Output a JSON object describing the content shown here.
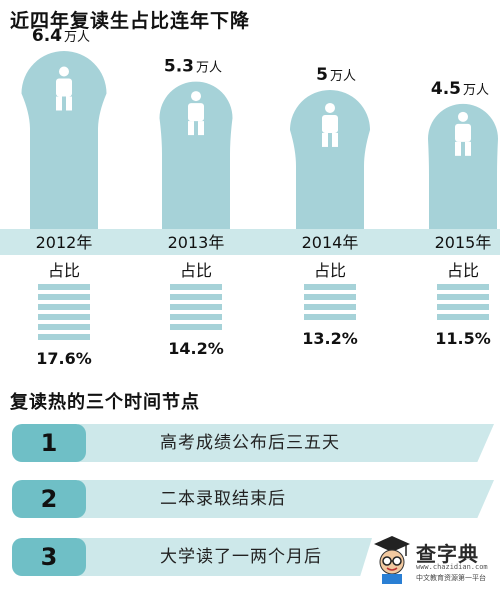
{
  "title": "近四年复读生占比连年下降",
  "unit": "万人",
  "share_label": "占比",
  "colors": {
    "accent": "#a6d2d8",
    "band": "#cde8ea",
    "dark_accent": "#6fbfc6",
    "text": "#111111"
  },
  "chart_data": {
    "type": "bar",
    "title": "近四年复读生占比连年下降",
    "categories": [
      "2012年",
      "2013年",
      "2014年",
      "2015年"
    ],
    "series": [
      {
        "name": "万人",
        "values": [
          6.4,
          5.3,
          5,
          4.5
        ],
        "value_labels": [
          "6.4",
          "5.3",
          "5",
          "4.5"
        ]
      },
      {
        "name": "占比",
        "values": [
          17.6,
          14.2,
          13.2,
          11.5
        ],
        "value_labels": [
          "17.6%",
          "14.2%",
          "13.2%",
          "11.5%"
        ]
      }
    ],
    "ylim": [
      0,
      6.4
    ],
    "grid": false,
    "legend": "none"
  },
  "timeline": {
    "title": "复读热的三个时间节点",
    "steps": [
      {
        "num": "1",
        "text": "高考成绩公布后三五天"
      },
      {
        "num": "2",
        "text": "二本录取结束后"
      },
      {
        "num": "3",
        "text": "大学读了一两个月后"
      }
    ]
  },
  "logo": {
    "name": "查字典",
    "url": "www.chazidian.com",
    "slogan": "中文教育资源第一平台",
    "icon": "graduate-mascot-icon"
  }
}
